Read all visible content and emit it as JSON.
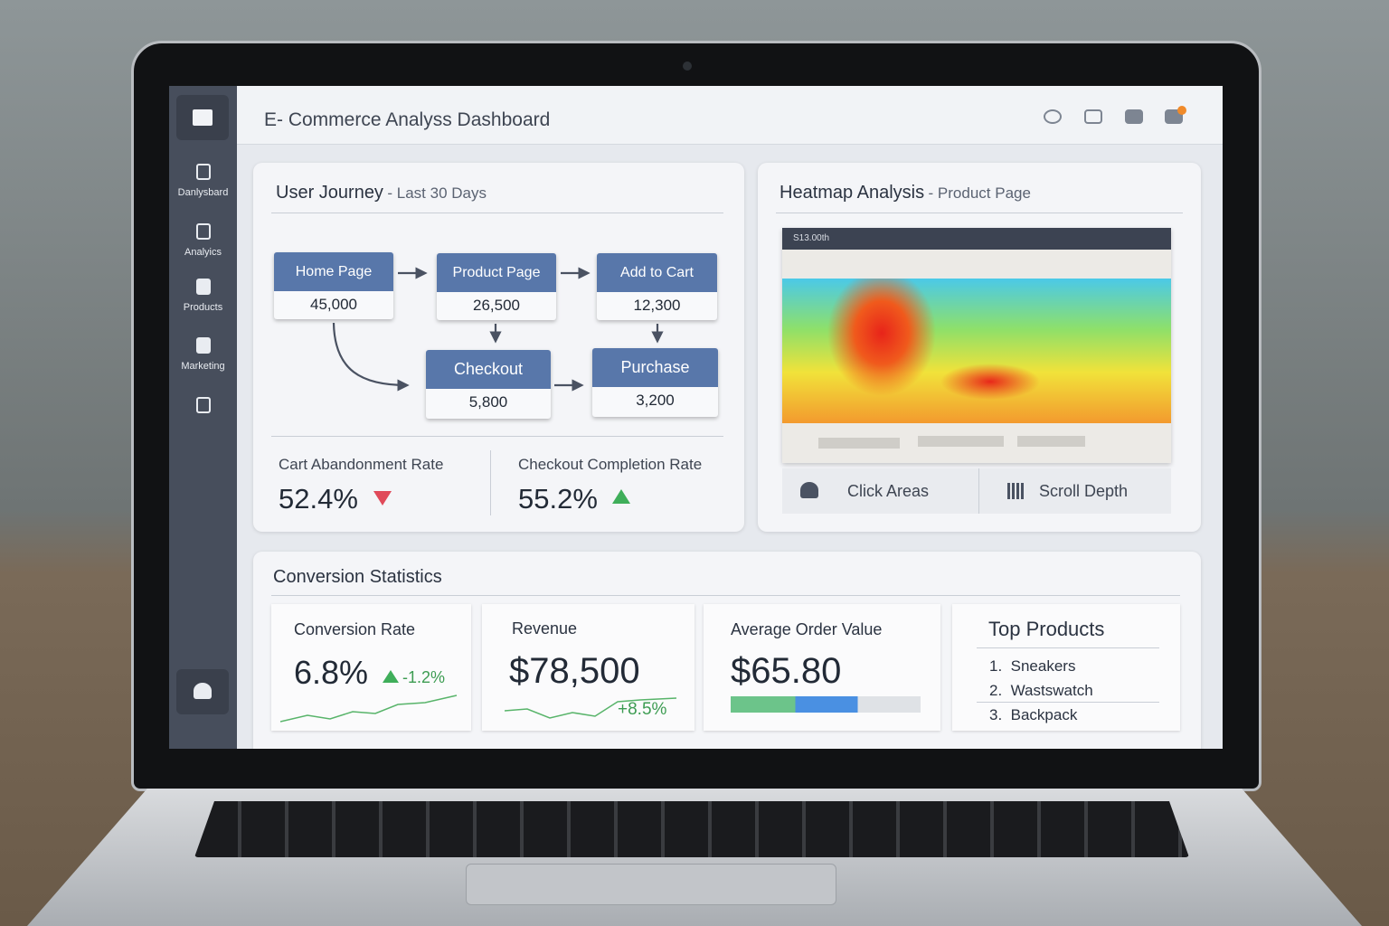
{
  "header": {
    "title": "E- Commerce Analyss Dashboard"
  },
  "sidebar": {
    "items": [
      "Danlysbard",
      "Analyics",
      "Products",
      "Marketing"
    ]
  },
  "user_journey": {
    "title": "User Journey",
    "subtitle": "- Last 30 Days",
    "nodes": [
      {
        "label": "Home Page",
        "value": "45,000"
      },
      {
        "label": "Product Page",
        "value": "26,500"
      },
      {
        "label": "Add to Cart",
        "value": "12,300"
      },
      {
        "label": "Checkout",
        "value": "5,800"
      },
      {
        "label": "Purchase",
        "value": "3,200"
      }
    ],
    "metrics": [
      {
        "label": "Cart Abandonment Rate",
        "value": "52.4%"
      },
      {
        "label": "Checkout Completion Rate",
        "value": "55.2%"
      }
    ]
  },
  "heatmap": {
    "title": "Heatmap Analysis",
    "subtitle": "- Product Page",
    "browser_label": "S13.00th",
    "tabs": [
      "Click Areas",
      "Scroll Depth"
    ]
  },
  "conversion": {
    "title": "Conversion Statistics",
    "cards": [
      {
        "label": "Conversion Rate",
        "value": "6.8%",
        "change": "-1.2%"
      },
      {
        "label": "Revenue",
        "value": "$78,500",
        "change": "+8.5%"
      },
      {
        "label": "Average Order Value",
        "value": "$65.80"
      }
    ],
    "top_products": {
      "title": "Top Products",
      "items": [
        {
          "index": "1.",
          "name": "Sneakers"
        },
        {
          "index": "2.",
          "name": "Wastswatch"
        },
        {
          "index": "3.",
          "name": "Backpack"
        }
      ]
    }
  }
}
